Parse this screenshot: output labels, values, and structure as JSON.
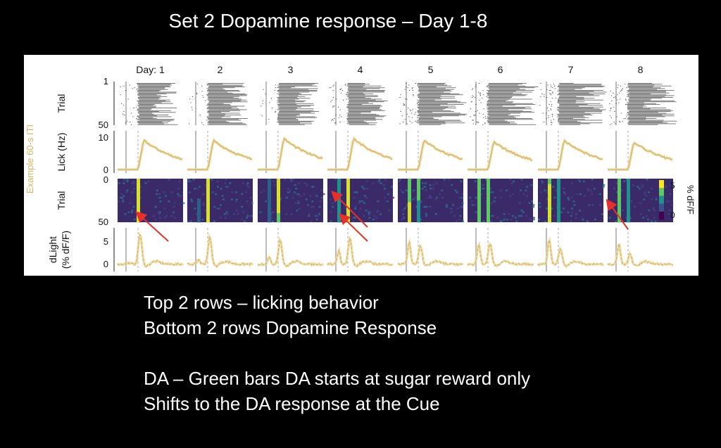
{
  "slide": {
    "title": "Set 2 Dopamine response – Day 1-8",
    "notes": [
      "Top 2 rows – licking behavior",
      "Bottom 2 rows Dopamine Response",
      "",
      "DA – Green bars DA starts at sugar reward only",
      "Shifts to the DA response at the Cue"
    ]
  },
  "chart_data": {
    "type": "panel-grid",
    "title": "",
    "side_label": "Example 60-s ITI",
    "day_labels": [
      "Day: 1",
      "2",
      "3",
      "4",
      "5",
      "6",
      "7",
      "8"
    ],
    "rows": [
      {
        "name": "lick-raster",
        "type": "scatter",
        "ylabel": "Trial",
        "yticks": [
          "1",
          "50"
        ],
        "ylim": [
          1,
          50
        ]
      },
      {
        "name": "lick-rate",
        "type": "line",
        "ylabel": "Lick (Hz)",
        "yticks": [
          "10",
          "0"
        ],
        "ylim": [
          0,
          11
        ],
        "peaks": [
          9,
          9,
          9.5,
          9.5,
          9,
          8.5,
          9,
          8.5
        ],
        "color": "#d4b45a"
      },
      {
        "name": "dlight-heatmap",
        "type": "heatmap",
        "ylabel": "Trial",
        "yticks": [
          "0",
          "50"
        ],
        "colorbar": {
          "label": "% dF/F",
          "ticks": [
            "5",
            "0"
          ],
          "range": [
            0,
            6
          ]
        }
      },
      {
        "name": "dlight-trace",
        "type": "line",
        "ylabel_line1": "dLight",
        "ylabel_line2": "(% dF/F)",
        "yticks": [
          "5",
          "0"
        ],
        "ylim": [
          -1,
          7.5
        ],
        "reward_peaks": [
          6.8,
          6,
          5.5,
          5.8,
          4.2,
          4.8,
          3.5,
          2.3
        ],
        "cue_peaks": [
          0.3,
          1,
          1.5,
          3,
          5,
          4.5,
          5.5,
          4.5
        ],
        "color": "#d4b45a"
      }
    ],
    "arrows": [
      {
        "day": 1,
        "row": "dlight-heatmap"
      },
      {
        "day": 4,
        "row": "dlight-heatmap"
      },
      {
        "day": 4,
        "row": "dlight-heatmap"
      },
      {
        "day": 8,
        "row": "dlight-heatmap"
      }
    ],
    "colors": {
      "trace": "#d4b45a",
      "raster": "#555555",
      "arrow": "#e8302a",
      "sidelabel": "#d9b55f"
    }
  }
}
